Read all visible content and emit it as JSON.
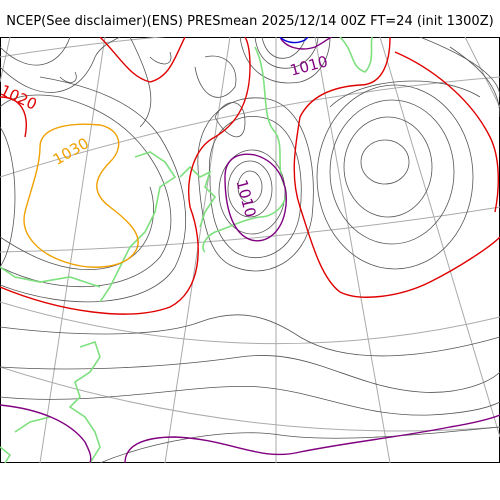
{
  "title": "NCEP(See disclaimer)(ENS) PRESmean 2025/12/14 00Z FT=24 (init 1300Z)",
  "labels": {
    "l1020": "1020",
    "l1030": "1030",
    "l1010_top": "1010",
    "l1010_center": "1010"
  },
  "colors": {
    "isobar_thin": "#555555",
    "isobar_1020": "#e00000",
    "isobar_1010": "#800080",
    "isobar_1030": "#f0a000",
    "isobar_1000": "#0000dd",
    "coastline": "#7ee07e",
    "graticule": "#aaaaaa"
  }
}
